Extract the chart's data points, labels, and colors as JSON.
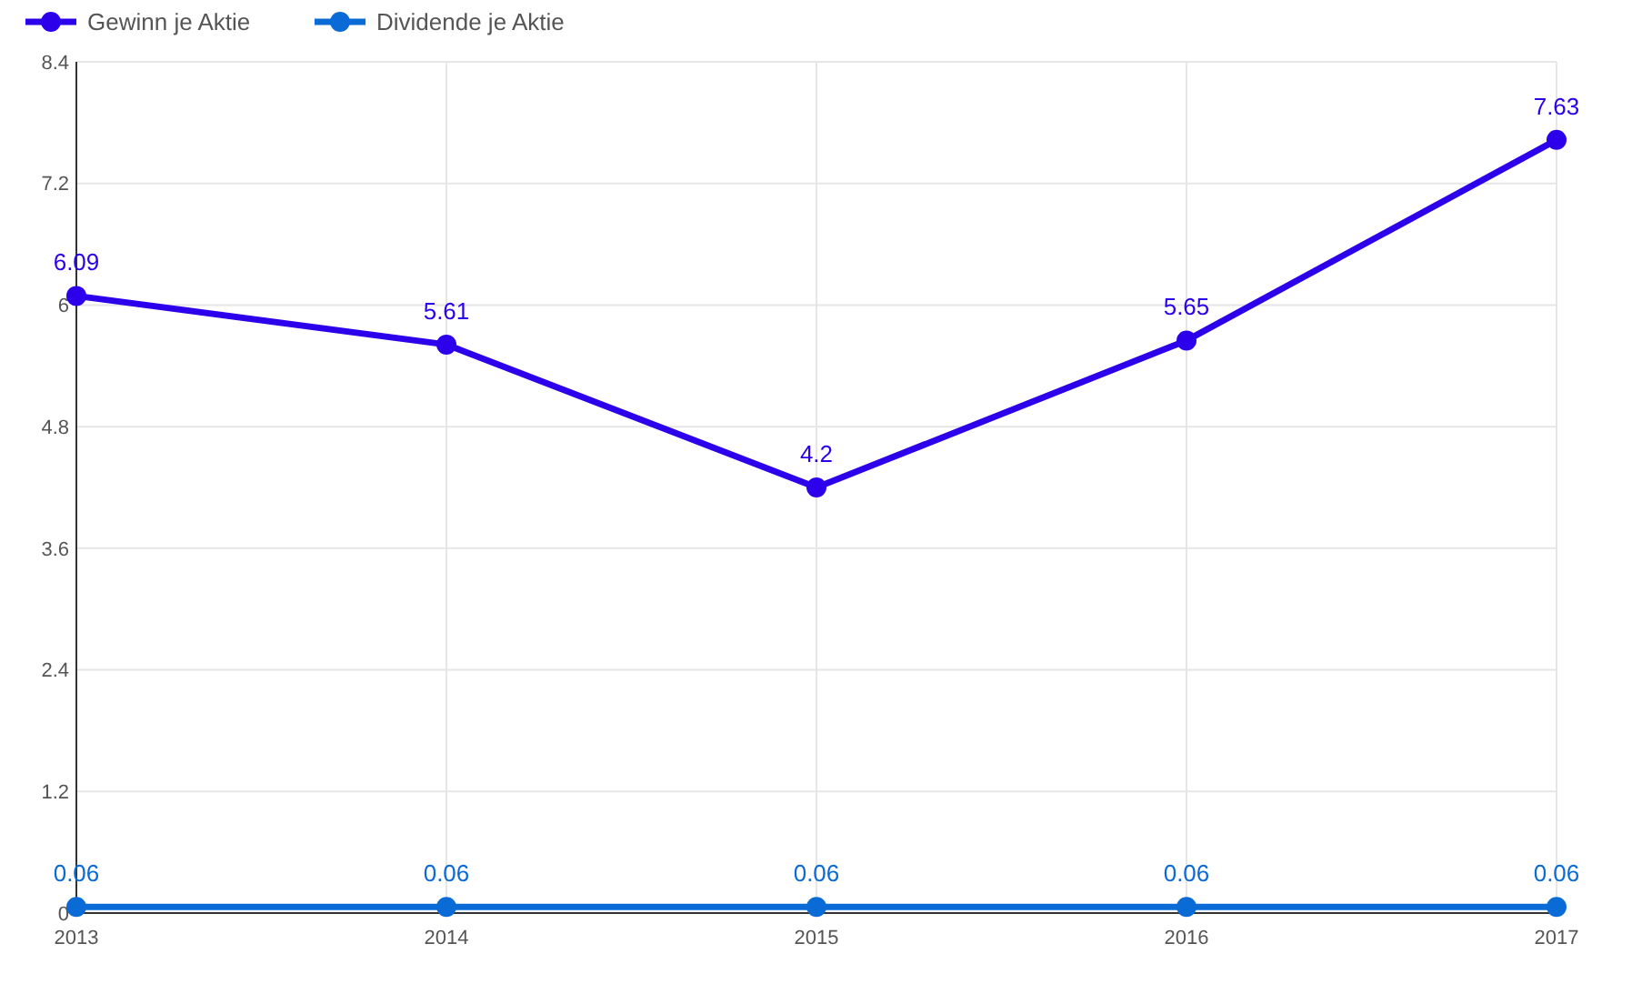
{
  "chart_data": {
    "type": "line",
    "categories": [
      "2013",
      "2014",
      "2015",
      "2016",
      "2017"
    ],
    "series": [
      {
        "name": "Gewinn je Aktie",
        "color": "#2d00ec",
        "values": [
          6.09,
          5.61,
          4.2,
          5.65,
          7.63
        ]
      },
      {
        "name": "Dividende je Aktie",
        "color": "#0a6ad6",
        "values": [
          0.06,
          0.06,
          0.06,
          0.06,
          0.06
        ]
      }
    ],
    "ylim": [
      0,
      8.4
    ],
    "yticks": [
      0,
      1.2,
      2.4,
      3.6,
      4.8,
      6,
      7.2,
      8.4
    ],
    "grid": true,
    "legend": "top left",
    "marker": "circle",
    "line_style": "solid",
    "data_labels": true
  }
}
